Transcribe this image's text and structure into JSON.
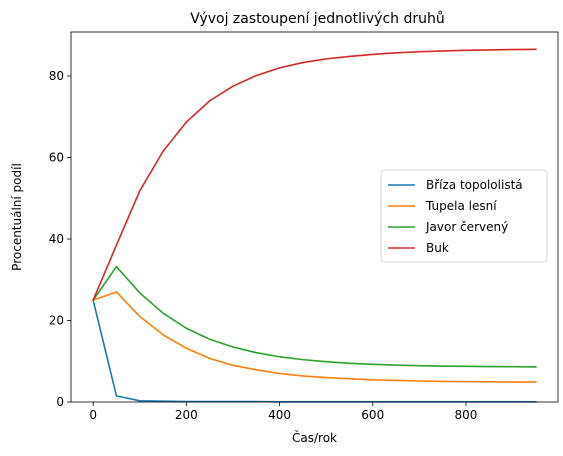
{
  "chart_data": {
    "type": "line",
    "title": "Vývoj zastoupení jednotlivých druhů",
    "xlabel": "Čas/rok",
    "ylabel": "Procentuální podíl",
    "xlim": [
      -47.5,
      997.5
    ],
    "ylim": [
      0,
      90.8
    ],
    "xticks": [
      0,
      200,
      400,
      600,
      800
    ],
    "yticks": [
      0,
      20,
      40,
      60,
      80
    ],
    "grid": false,
    "legend_position": "center-right",
    "x": [
      0,
      50,
      100,
      150,
      200,
      250,
      300,
      350,
      400,
      450,
      500,
      550,
      600,
      650,
      700,
      750,
      800,
      850,
      900,
      950
    ],
    "series": [
      {
        "name": "Bříza topololistá",
        "color": "#1f77b4",
        "values": [
          25,
          1.5,
          0.3,
          0.2,
          0.1,
          0.1,
          0.1,
          0.1,
          0.05,
          0.05,
          0.05,
          0.05,
          0.05,
          0.05,
          0.05,
          0.05,
          0.05,
          0.05,
          0.05,
          0.05
        ]
      },
      {
        "name": "Tupela lesní",
        "color": "#ff7f0e",
        "values": [
          25,
          27,
          21,
          16.5,
          13.2,
          10.7,
          9.0,
          7.9,
          7.0,
          6.4,
          6.0,
          5.7,
          5.45,
          5.3,
          5.15,
          5.05,
          5.0,
          4.95,
          4.9,
          4.9
        ]
      },
      {
        "name": "Javor červený",
        "color": "#2ca02c",
        "values": [
          25,
          33.2,
          26.8,
          21.8,
          18.1,
          15.4,
          13.5,
          12.1,
          11.1,
          10.4,
          9.9,
          9.5,
          9.25,
          9.05,
          8.9,
          8.8,
          8.75,
          8.7,
          8.65,
          8.6
        ]
      },
      {
        "name": "Buk",
        "color": "#d62728",
        "values": [
          25,
          38.5,
          51.8,
          61.5,
          68.7,
          73.9,
          77.5,
          80.1,
          82.0,
          83.3,
          84.2,
          84.8,
          85.3,
          85.7,
          85.95,
          86.15,
          86.3,
          86.4,
          86.5,
          86.55
        ]
      }
    ]
  }
}
